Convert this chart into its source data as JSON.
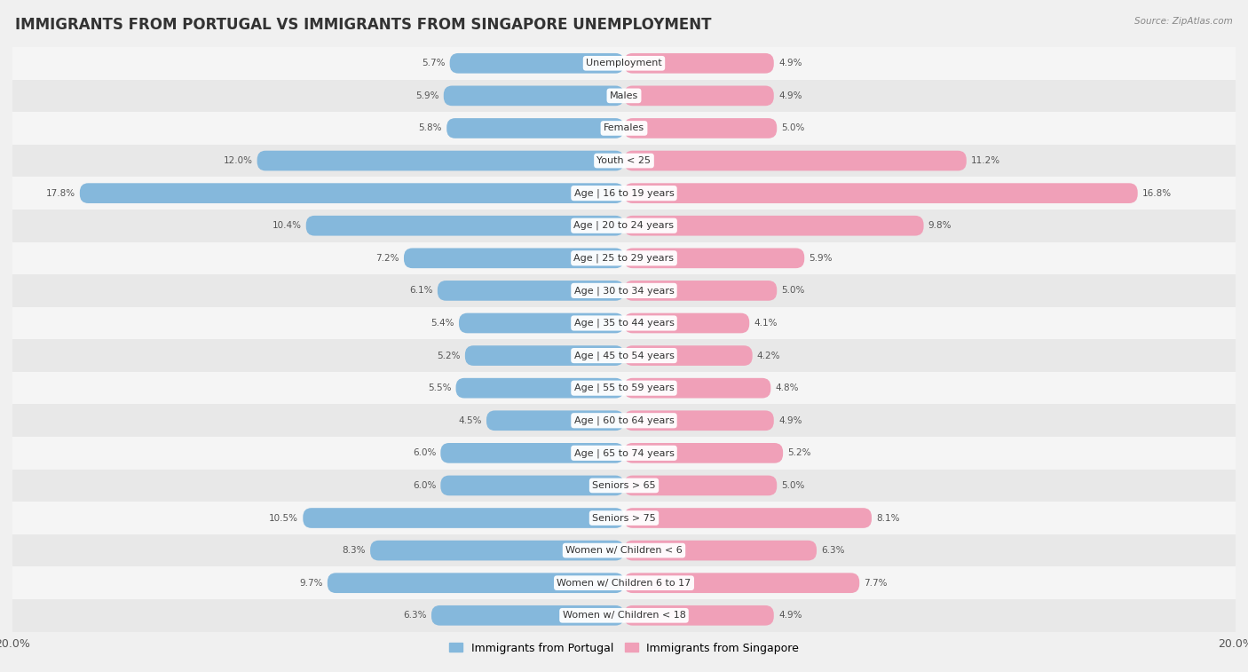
{
  "title": "IMMIGRANTS FROM PORTUGAL VS IMMIGRANTS FROM SINGAPORE UNEMPLOYMENT",
  "source": "Source: ZipAtlas.com",
  "categories": [
    "Unemployment",
    "Males",
    "Females",
    "Youth < 25",
    "Age | 16 to 19 years",
    "Age | 20 to 24 years",
    "Age | 25 to 29 years",
    "Age | 30 to 34 years",
    "Age | 35 to 44 years",
    "Age | 45 to 54 years",
    "Age | 55 to 59 years",
    "Age | 60 to 64 years",
    "Age | 65 to 74 years",
    "Seniors > 65",
    "Seniors > 75",
    "Women w/ Children < 6",
    "Women w/ Children 6 to 17",
    "Women w/ Children < 18"
  ],
  "portugal_values": [
    5.7,
    5.9,
    5.8,
    12.0,
    17.8,
    10.4,
    7.2,
    6.1,
    5.4,
    5.2,
    5.5,
    4.5,
    6.0,
    6.0,
    10.5,
    8.3,
    9.7,
    6.3
  ],
  "singapore_values": [
    4.9,
    4.9,
    5.0,
    11.2,
    16.8,
    9.8,
    5.9,
    5.0,
    4.1,
    4.2,
    4.8,
    4.9,
    5.2,
    5.0,
    8.1,
    6.3,
    7.7,
    4.9
  ],
  "portugal_color": "#85b8dc",
  "singapore_color": "#f0a0b8",
  "portugal_label": "Immigrants from Portugal",
  "singapore_label": "Immigrants from Singapore",
  "axis_max": 20.0,
  "bar_height": 0.62,
  "bg_color": "#f0f0f0",
  "row_bg_light": "#f5f5f5",
  "row_bg_dark": "#e8e8e8",
  "title_fontsize": 12,
  "label_fontsize": 8.0,
  "value_fontsize": 7.5
}
